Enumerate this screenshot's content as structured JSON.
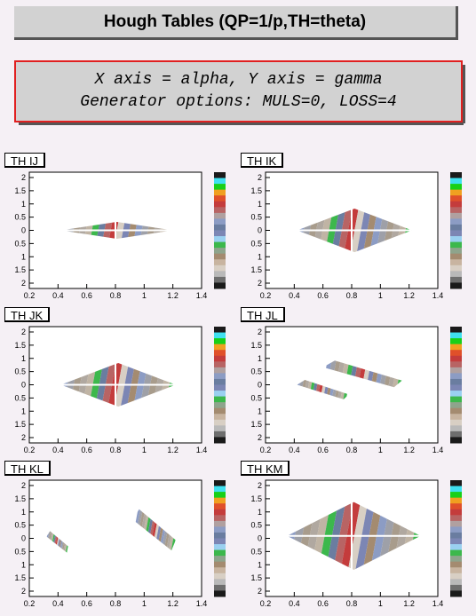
{
  "header": {
    "title": "Hough Tables (QP=1/p,TH=theta)",
    "line1": "X axis = alpha, Y axis = gamma",
    "line2": "Generator options: MULS=0, LOSS=4"
  },
  "chart_data": [
    {
      "type": "heatmap",
      "title": "TH IJ",
      "xlim": [
        0.2,
        1.4
      ],
      "ylim": [
        -2.4,
        2.4
      ],
      "x_ticks": [
        "0.2",
        "0.4",
        "0.6",
        "0.8",
        "1",
        "1.2",
        "1.4"
      ],
      "y_ticks": [
        "2",
        "1.5",
        "1",
        "0.5",
        "0",
        "0.5",
        "1",
        "1.5",
        "2"
      ],
      "regions": [
        {
          "shape": "diamond",
          "x": [
            0.42,
            1.2
          ],
          "y": [
            -0.35,
            0.35
          ],
          "cross_x": 0.8
        }
      ]
    },
    {
      "type": "heatmap",
      "title": "TH IK",
      "xlim": [
        0.2,
        1.4
      ],
      "ylim": [
        -2.4,
        2.4
      ],
      "x_ticks": [
        "0.2",
        "0.4",
        "0.6",
        "0.8",
        "1",
        "1.2",
        "1.4"
      ],
      "y_ticks": [
        "2",
        "1.5",
        "1",
        "0.5",
        "0",
        "0.5",
        "1",
        "1.5",
        "2"
      ],
      "regions": [
        {
          "shape": "diamond",
          "x": [
            0.42,
            1.22
          ],
          "y": [
            -0.9,
            0.9
          ],
          "cross_x": 0.8
        }
      ]
    },
    {
      "type": "heatmap",
      "title": "TH JK",
      "xlim": [
        0.2,
        1.4
      ],
      "ylim": [
        -2.4,
        2.4
      ],
      "x_ticks": [
        "0.2",
        "0.4",
        "0.6",
        "0.8",
        "1",
        "1.2",
        "1.4"
      ],
      "y_ticks": [
        "2",
        "1.5",
        "1",
        "0.5",
        "0",
        "0.5",
        "1",
        "1.5",
        "2"
      ],
      "regions": [
        {
          "shape": "diamond",
          "x": [
            0.42,
            1.22
          ],
          "y": [
            -0.9,
            0.9
          ],
          "cross_x": 0.8
        }
      ]
    },
    {
      "type": "heatmap",
      "title": "TH JL",
      "xlim": [
        0.2,
        1.4
      ],
      "ylim": [
        -2.4,
        2.4
      ],
      "x_ticks": [
        "0.2",
        "0.4",
        "0.6",
        "0.8",
        "1",
        "1.2",
        "1.4"
      ],
      "y_ticks": [
        "2",
        "1.5",
        "1",
        "0.5",
        "0",
        "0.5",
        "1",
        "1.5",
        "2"
      ],
      "regions": [
        {
          "shape": "band",
          "x": [
            0.6,
            1.15
          ],
          "y": [
            -0.1,
            1.0
          ]
        },
        {
          "shape": "band",
          "x": [
            0.42,
            0.78
          ],
          "y": [
            -0.6,
            0.2
          ]
        }
      ]
    },
    {
      "type": "heatmap",
      "title": "TH KL",
      "xlim": [
        0.2,
        1.4
      ],
      "ylim": [
        -2.4,
        2.4
      ],
      "x_ticks": [
        "0.2",
        "0.4",
        "0.6",
        "0.8",
        "1",
        "1.2",
        "1.4"
      ],
      "y_ticks": [
        "2",
        "1.5",
        "1",
        "0.5",
        "0",
        "0.5",
        "1",
        "1.5",
        "2"
      ],
      "regions": [
        {
          "shape": "band",
          "x": [
            0.92,
            1.22
          ],
          "y": [
            -0.5,
            1.2
          ]
        },
        {
          "shape": "band",
          "x": [
            0.32,
            0.48
          ],
          "y": [
            -0.6,
            0.3
          ]
        }
      ]
    },
    {
      "type": "heatmap",
      "title": "TH KM",
      "xlim": [
        0.2,
        1.4
      ],
      "ylim": [
        -2.4,
        2.4
      ],
      "x_ticks": [
        "0.2",
        "0.4",
        "0.6",
        "0.8",
        "1",
        "1.2",
        "1.4"
      ],
      "y_ticks": [
        "2",
        "1.5",
        "1",
        "0.5",
        "0",
        "0.5",
        "1",
        "1.5",
        "2"
      ],
      "regions": [
        {
          "shape": "diamond",
          "x": [
            0.35,
            1.28
          ],
          "y": [
            -1.3,
            1.5
          ],
          "cross_x": 0.8
        }
      ]
    }
  ],
  "palette": [
    "#1a1a1a",
    "#6e6e6e",
    "#b9b9b9",
    "#d8cfc4",
    "#c8b4a0",
    "#a48b70",
    "#8ea48c",
    "#3cb84c",
    "#9ad0f0",
    "#7c86b4",
    "#6a7da0",
    "#8c9cc4",
    "#b0a0a0",
    "#b86464",
    "#c43c3c",
    "#e0502a",
    "#f0a020",
    "#18d018",
    "#40e0f0",
    "#1a1a1a"
  ]
}
